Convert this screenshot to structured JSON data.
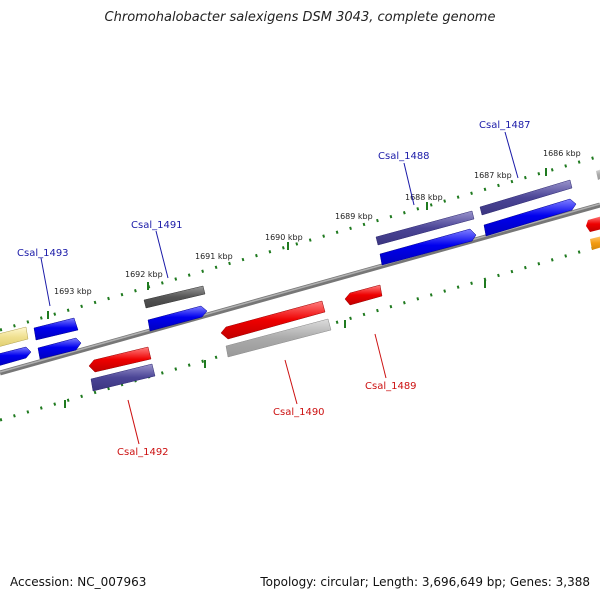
{
  "title": "Chromohalobacter salexigens DSM 3043, complete genome",
  "footer": {
    "accession": "Accession: NC_007963",
    "summary": "Topology: circular; Length: 3,696,649 bp; Genes: 3,388"
  },
  "colors": {
    "backbone": "#888888",
    "tick": "#1f7a1f",
    "label_top": "#1a1aa8",
    "label_bottom": "#cc1111",
    "gene_blue": "#0000ee",
    "gene_purple": "#4b4596",
    "gene_red": "#ee0000",
    "gene_gray": "#555555",
    "gene_lightgray": "#aaaaaa",
    "gene_yellow": "#f0e090",
    "gene_orange": "#f39c12"
  },
  "kbp_labels": [
    "1686 kbp",
    "1687 kbp",
    "1688 kbp",
    "1689 kbp",
    "1690 kbp",
    "1691 kbp",
    "1692 kbp",
    "1693 kbp"
  ],
  "gene_labels_top": [
    "Csal_1487",
    "Csal_1488",
    "Csal_1491",
    "Csal_1493"
  ],
  "gene_labels_bottom": [
    "Csal_1489",
    "Csal_1490",
    "Csal_1492"
  ]
}
